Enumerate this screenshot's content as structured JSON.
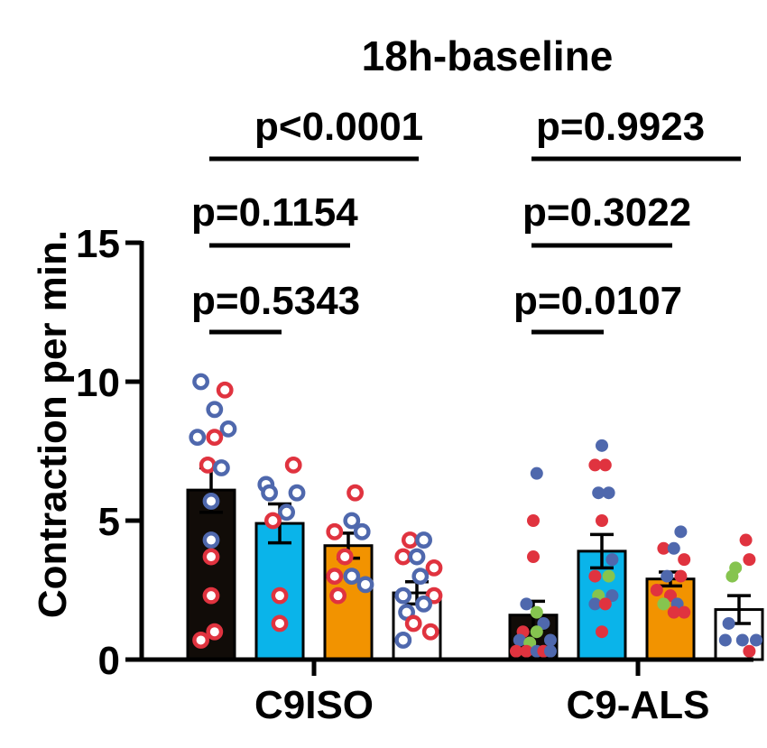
{
  "chart_data": {
    "type": "bar",
    "title": "18h-baseline",
    "ylabel": "Contraction per min.",
    "ylim": [
      0,
      15
    ],
    "yticks": [
      0,
      5,
      10,
      15
    ],
    "groups": [
      "C9ISO",
      "C9-ALS"
    ],
    "bar_colors": [
      "#110c08",
      "#0ab4ea",
      "#f29300",
      "#ffffff"
    ],
    "point_colors": {
      "red": "#e0333f",
      "blue": "#4f68ad",
      "green": "#86c44f"
    },
    "bars": [
      {
        "group": "C9ISO",
        "slot": 0,
        "fill": "#110c08",
        "mean": 6.1,
        "sem": 0.8,
        "points": [
          {
            "x": -0.3,
            "y": 10.0,
            "c": "blue",
            "o": 1
          },
          {
            "x": 0.4,
            "y": 9.7,
            "c": "red",
            "o": 1
          },
          {
            "x": 0.1,
            "y": 9.0,
            "c": "blue",
            "o": 1
          },
          {
            "x": 0.5,
            "y": 8.3,
            "c": "blue",
            "o": 1
          },
          {
            "x": -0.4,
            "y": 8.0,
            "c": "blue",
            "o": 1
          },
          {
            "x": 0.1,
            "y": 8.0,
            "c": "red",
            "o": 1
          },
          {
            "x": -0.1,
            "y": 7.0,
            "c": "red",
            "o": 1
          },
          {
            "x": 0.3,
            "y": 6.9,
            "c": "blue",
            "o": 1
          },
          {
            "x": 0.0,
            "y": 5.7,
            "c": "blue",
            "o": 1
          },
          {
            "x": 0.0,
            "y": 4.3,
            "c": "blue",
            "o": 1
          },
          {
            "x": 0.0,
            "y": 3.7,
            "c": "red",
            "o": 1
          },
          {
            "x": 0.0,
            "y": 2.3,
            "c": "red",
            "o": 1
          },
          {
            "x": 0.1,
            "y": 1.0,
            "c": "red",
            "o": 1
          },
          {
            "x": -0.3,
            "y": 0.7,
            "c": "red",
            "o": 1
          }
        ]
      },
      {
        "group": "C9ISO",
        "slot": 1,
        "fill": "#0ab4ea",
        "mean": 4.9,
        "sem": 0.7,
        "points": [
          {
            "x": 0.4,
            "y": 7.0,
            "c": "red",
            "o": 1
          },
          {
            "x": -0.4,
            "y": 6.3,
            "c": "blue",
            "o": 1
          },
          {
            "x": 0.5,
            "y": 6.0,
            "c": "blue",
            "o": 1
          },
          {
            "x": -0.3,
            "y": 6.0,
            "c": "blue",
            "o": 1
          },
          {
            "x": 0.2,
            "y": 5.3,
            "c": "blue",
            "o": 1
          },
          {
            "x": -0.2,
            "y": 5.0,
            "c": "red",
            "o": 1
          },
          {
            "x": 0.0,
            "y": 2.3,
            "c": "red",
            "o": 1
          },
          {
            "x": 0.0,
            "y": 1.3,
            "c": "red",
            "o": 1
          }
        ]
      },
      {
        "group": "C9ISO",
        "slot": 2,
        "fill": "#f29300",
        "mean": 4.1,
        "sem": 0.45,
        "points": [
          {
            "x": 0.2,
            "y": 6.0,
            "c": "red",
            "o": 1
          },
          {
            "x": 0.1,
            "y": 5.0,
            "c": "blue",
            "o": 1
          },
          {
            "x": -0.4,
            "y": 4.6,
            "c": "red",
            "o": 1
          },
          {
            "x": 0.4,
            "y": 4.6,
            "c": "blue",
            "o": 1
          },
          {
            "x": -0.1,
            "y": 3.7,
            "c": "red",
            "o": 1
          },
          {
            "x": 0.1,
            "y": 3.0,
            "c": "blue",
            "o": 1
          },
          {
            "x": -0.4,
            "y": 3.0,
            "c": "red",
            "o": 1
          },
          {
            "x": 0.5,
            "y": 2.7,
            "c": "blue",
            "o": 1
          },
          {
            "x": -0.3,
            "y": 2.3,
            "c": "red",
            "o": 1
          }
        ]
      },
      {
        "group": "C9ISO",
        "slot": 3,
        "fill": "#ffffff",
        "mean": 2.4,
        "sem": 0.4,
        "points": [
          {
            "x": -0.2,
            "y": 4.3,
            "c": "red",
            "o": 1
          },
          {
            "x": 0.2,
            "y": 4.3,
            "c": "blue",
            "o": 1
          },
          {
            "x": -0.4,
            "y": 3.7,
            "c": "red",
            "o": 1
          },
          {
            "x": 0.0,
            "y": 3.7,
            "c": "blue",
            "o": 1
          },
          {
            "x": 0.5,
            "y": 3.3,
            "c": "red",
            "o": 1
          },
          {
            "x": 0.1,
            "y": 3.0,
            "c": "blue",
            "o": 1
          },
          {
            "x": -0.4,
            "y": 2.3,
            "c": "blue",
            "o": 1
          },
          {
            "x": 0.5,
            "y": 2.3,
            "c": "red",
            "o": 1
          },
          {
            "x": 0.2,
            "y": 2.0,
            "c": "blue",
            "o": 1
          },
          {
            "x": -0.3,
            "y": 1.7,
            "c": "blue",
            "o": 1
          },
          {
            "x": -0.1,
            "y": 1.3,
            "c": "red",
            "o": 1
          },
          {
            "x": 0.4,
            "y": 1.0,
            "c": "red",
            "o": 1
          },
          {
            "x": -0.4,
            "y": 0.7,
            "c": "blue",
            "o": 1
          }
        ]
      },
      {
        "group": "C9-ALS",
        "slot": 0,
        "fill": "#110c08",
        "mean": 1.6,
        "sem": 0.5,
        "points": [
          {
            "x": 0.1,
            "y": 6.7,
            "c": "blue",
            "o": 0
          },
          {
            "x": 0.0,
            "y": 5.0,
            "c": "red",
            "o": 0
          },
          {
            "x": 0.0,
            "y": 3.7,
            "c": "red",
            "o": 0
          },
          {
            "x": -0.2,
            "y": 2.0,
            "c": "blue",
            "o": 0
          },
          {
            "x": 0.1,
            "y": 1.7,
            "c": "green",
            "o": 0
          },
          {
            "x": 0.3,
            "y": 1.3,
            "c": "blue",
            "o": 0
          },
          {
            "x": -0.3,
            "y": 1.0,
            "c": "red",
            "o": 0
          },
          {
            "x": 0.1,
            "y": 1.0,
            "c": "green",
            "o": 0
          },
          {
            "x": -0.4,
            "y": 0.7,
            "c": "blue",
            "o": 0
          },
          {
            "x": -0.1,
            "y": 0.6,
            "c": "green",
            "o": 0
          },
          {
            "x": 0.5,
            "y": 0.7,
            "c": "blue",
            "o": 0
          },
          {
            "x": -0.5,
            "y": 0.3,
            "c": "red",
            "o": 0
          },
          {
            "x": -0.2,
            "y": 0.3,
            "c": "red",
            "o": 0
          },
          {
            "x": 0.1,
            "y": 0.3,
            "c": "blue",
            "o": 0
          },
          {
            "x": 0.3,
            "y": 0.3,
            "c": "red",
            "o": 0
          },
          {
            "x": 0.5,
            "y": 0.3,
            "c": "blue",
            "o": 0
          }
        ]
      },
      {
        "group": "C9-ALS",
        "slot": 1,
        "fill": "#0ab4ea",
        "mean": 3.9,
        "sem": 0.6,
        "points": [
          {
            "x": 0.0,
            "y": 7.7,
            "c": "blue",
            "o": 0
          },
          {
            "x": -0.2,
            "y": 7.0,
            "c": "red",
            "o": 0
          },
          {
            "x": 0.1,
            "y": 7.0,
            "c": "red",
            "o": 0
          },
          {
            "x": -0.1,
            "y": 6.0,
            "c": "blue",
            "o": 0
          },
          {
            "x": 0.2,
            "y": 6.0,
            "c": "blue",
            "o": 0
          },
          {
            "x": 0.0,
            "y": 5.0,
            "c": "red",
            "o": 0
          },
          {
            "x": 0.3,
            "y": 3.6,
            "c": "blue",
            "o": 0
          },
          {
            "x": -0.2,
            "y": 3.0,
            "c": "red",
            "o": 0
          },
          {
            "x": 0.2,
            "y": 3.0,
            "c": "green",
            "o": 0
          },
          {
            "x": -0.1,
            "y": 2.3,
            "c": "green",
            "o": 0
          },
          {
            "x": 0.3,
            "y": 2.3,
            "c": "blue",
            "o": 0
          },
          {
            "x": -0.2,
            "y": 2.0,
            "c": "blue",
            "o": 0
          },
          {
            "x": 0.1,
            "y": 2.0,
            "c": "red",
            "o": 0
          },
          {
            "x": 0.0,
            "y": 1.0,
            "c": "red",
            "o": 0
          }
        ]
      },
      {
        "group": "C9-ALS",
        "slot": 2,
        "fill": "#f29300",
        "mean": 2.9,
        "sem": 0.25,
        "points": [
          {
            "x": 0.3,
            "y": 4.6,
            "c": "blue",
            "o": 0
          },
          {
            "x": -0.2,
            "y": 4.0,
            "c": "red",
            "o": 0
          },
          {
            "x": 0.1,
            "y": 4.0,
            "c": "blue",
            "o": 0
          },
          {
            "x": 0.4,
            "y": 3.6,
            "c": "red",
            "o": 0
          },
          {
            "x": -0.1,
            "y": 3.0,
            "c": "blue",
            "o": 0
          },
          {
            "x": 0.3,
            "y": 3.0,
            "c": "red",
            "o": 0
          },
          {
            "x": -0.4,
            "y": 2.5,
            "c": "red",
            "o": 0
          },
          {
            "x": 0.0,
            "y": 2.3,
            "c": "red",
            "o": 0
          },
          {
            "x": 0.2,
            "y": 2.0,
            "c": "blue",
            "o": 0
          },
          {
            "x": -0.2,
            "y": 2.0,
            "c": "green",
            "o": 0
          },
          {
            "x": 0.4,
            "y": 1.7,
            "c": "red",
            "o": 0
          },
          {
            "x": 0.1,
            "y": 1.7,
            "c": "red",
            "o": 0
          }
        ]
      },
      {
        "group": "C9-ALS",
        "slot": 3,
        "fill": "#ffffff",
        "mean": 1.8,
        "sem": 0.5,
        "points": [
          {
            "x": 0.2,
            "y": 4.3,
            "c": "red",
            "o": 0
          },
          {
            "x": 0.3,
            "y": 3.6,
            "c": "red",
            "o": 0
          },
          {
            "x": -0.1,
            "y": 3.3,
            "c": "green",
            "o": 0
          },
          {
            "x": -0.2,
            "y": 3.0,
            "c": "green",
            "o": 0
          },
          {
            "x": -0.3,
            "y": 1.3,
            "c": "blue",
            "o": 0
          },
          {
            "x": -0.4,
            "y": 0.7,
            "c": "blue",
            "o": 0
          },
          {
            "x": 0.1,
            "y": 0.7,
            "c": "blue",
            "o": 0
          },
          {
            "x": 0.5,
            "y": 0.7,
            "c": "blue",
            "o": 0
          },
          {
            "x": 0.3,
            "y": 0.3,
            "c": "red",
            "o": 0
          }
        ]
      }
    ],
    "comparisons": [
      {
        "group": "C9ISO",
        "from": 0,
        "to": 3,
        "label": "p<0.0001"
      },
      {
        "group": "C9ISO",
        "from": 0,
        "to": 2,
        "label": "p=0.1154"
      },
      {
        "group": "C9ISO",
        "from": 0,
        "to": 1,
        "label": "p=0.5343"
      },
      {
        "group": "C9-ALS",
        "from": 0,
        "to": 3,
        "label": "p=0.9923"
      },
      {
        "group": "C9-ALS",
        "from": 0,
        "to": 2,
        "label": "p=0.3022"
      },
      {
        "group": "C9-ALS",
        "from": 0,
        "to": 1,
        "label": "p=0.0107"
      }
    ]
  }
}
